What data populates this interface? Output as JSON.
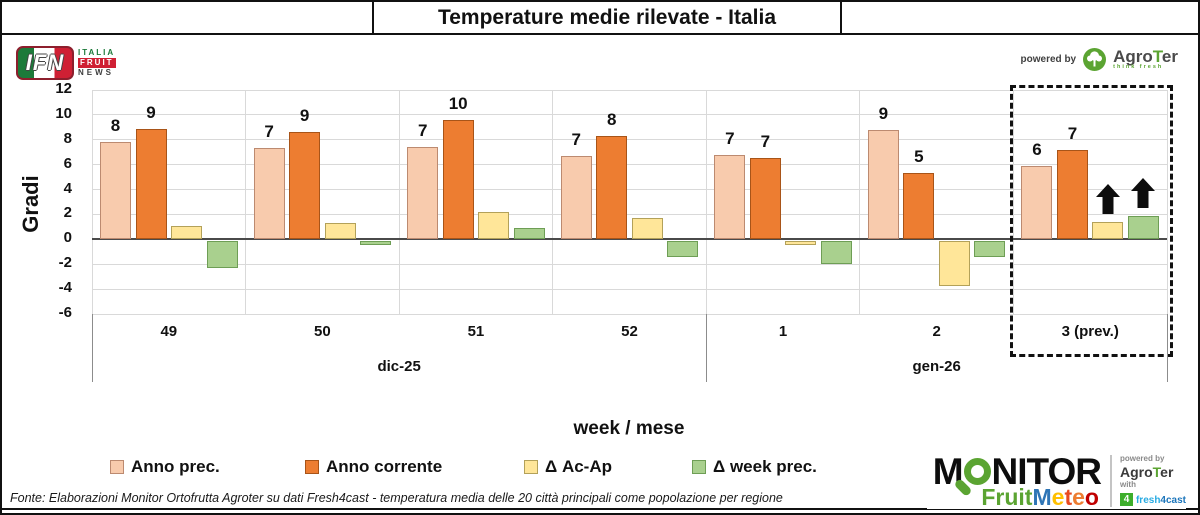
{
  "header": {
    "title": "Temperature medie rilevate - Italia",
    "powered_by": "powered by",
    "agroter_pre": "Agro",
    "agroter_t": "T",
    "agroter_post": "er",
    "agroter_tagline": "think fresh"
  },
  "ifn_logo": {
    "abbr": "IFN",
    "line1": "ITALIA",
    "line2": "FRUIT",
    "line3": "NEWS"
  },
  "chart_data": {
    "type": "bar",
    "title": "Temperature medie rilevate - Italia",
    "ylabel": "Gradi",
    "xlabel": "week / mese",
    "ylim": [
      -6,
      12
    ],
    "ytick_step": 2,
    "grid": true,
    "legend_position": "bottom",
    "categories": [
      "49",
      "50",
      "51",
      "52",
      "1",
      "2",
      "3 (prev.)"
    ],
    "month_groups": [
      {
        "label": "dic-25",
        "span": 4
      },
      {
        "label": "gen-26",
        "span": 3
      }
    ],
    "series": [
      {
        "name": "Anno prec.",
        "color": "#F8CBAD",
        "border": "#BC8A70",
        "values": [
          7.8,
          7.3,
          7.4,
          6.7,
          6.8,
          8.8,
          5.9
        ],
        "labels": [
          8,
          7,
          7,
          7,
          7,
          9,
          6
        ]
      },
      {
        "name": "Anno corrente",
        "color": "#ED7D31",
        "border": "#A85418",
        "values": [
          8.9,
          8.6,
          9.6,
          8.3,
          6.5,
          5.3,
          7.2
        ],
        "labels": [
          9,
          9,
          10,
          8,
          7,
          5,
          7
        ]
      },
      {
        "name": "Δ Ac-Ap",
        "color": "#FFE699",
        "border": "#B3A159",
        "values": [
          1.1,
          1.3,
          2.2,
          1.7,
          -0.3,
          -3.6,
          1.4
        ],
        "labels": null
      },
      {
        "name": "Δ week prec.",
        "color": "#A9D08E",
        "border": "#6E9E55",
        "values": [
          -2.2,
          -0.3,
          0.9,
          -1.3,
          -1.9,
          -1.3,
          1.9
        ],
        "labels": null
      }
    ],
    "forecast_group_index": 6,
    "arrows": [
      {
        "series_index": 2,
        "category_index": 6,
        "direction": "up"
      },
      {
        "series_index": 3,
        "category_index": 6,
        "direction": "up"
      }
    ]
  },
  "footer": {
    "source": "Fonte: Elaborazioni Monitor Ortofrutta Agroter su dati Fresh4cast - temperatura media delle 20 città principali come popolazione per regione"
  },
  "monitor_logo": {
    "word_pre": "M",
    "word_post": "NITOR",
    "fruit": "Fruit",
    "meteo_letters": [
      {
        "ch": "M",
        "color": "#2E75B6"
      },
      {
        "ch": "e",
        "color": "#FFC000"
      },
      {
        "ch": "t",
        "color": "#E8491F"
      },
      {
        "ch": "e",
        "color": "#ED7D31"
      },
      {
        "ch": "o",
        "color": "#C00000"
      }
    ],
    "powered_by": "powered by",
    "agroter_pre": "Agro",
    "agroter_t": "T",
    "agroter_post": "er",
    "with_label": "with",
    "badge": "4",
    "fresh": "fresh",
    "cast": "4cast"
  }
}
